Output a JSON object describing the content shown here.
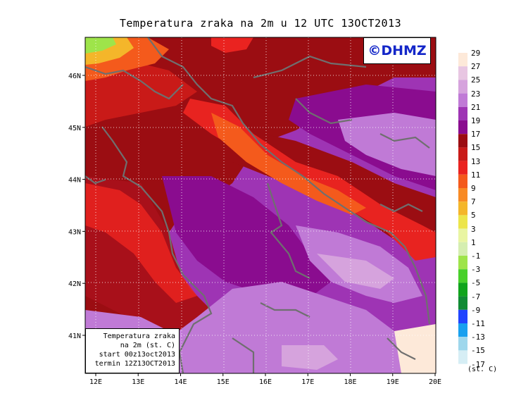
{
  "title": "Temperatura zraka na 2m u 12 UTC 13OCT2013",
  "logo_text": "©DHMZ",
  "info_box": {
    "line1": "Temperatura zraka",
    "line2": "na 2m (st. C)",
    "line3": "start 00z13oct2013",
    "line4": "termin 12Z13OCT2013"
  },
  "map": {
    "lon_ticks": [
      "12E",
      "13E",
      "14E",
      "15E",
      "16E",
      "17E",
      "18E",
      "19E",
      "20E"
    ],
    "lat_ticks": [
      "46N",
      "45N",
      "44N",
      "43N",
      "42N",
      "41N"
    ],
    "lon_range": [
      11.7,
      20.0
    ],
    "lat_range": [
      40.3,
      46.8
    ]
  },
  "colorbar": {
    "labels": [
      "29",
      "27",
      "25",
      "23",
      "21",
      "19",
      "17",
      "15",
      "13",
      "11",
      "9",
      "7",
      "5",
      "3",
      "1",
      "-1",
      "-3",
      "-5",
      "-7",
      "-9",
      "-11",
      "-13",
      "-15",
      "-17"
    ],
    "colors": [
      "#fde9d9",
      "#e8c6e2",
      "#d6a3dd",
      "#c07ad6",
      "#9e34b4",
      "#8a0c8f",
      "#9b0d12",
      "#c91a18",
      "#ea2320",
      "#f45a1c",
      "#f88a24",
      "#f4b62a",
      "#ece54a",
      "#e9f5a2",
      "#d5eeb0",
      "#9ee44a",
      "#48d02a",
      "#10a41c",
      "#108b34",
      "#2044ff",
      "#18a0ef",
      "#9ed7ec",
      "#d6eef5"
    ],
    "units": "(st. C)"
  }
}
